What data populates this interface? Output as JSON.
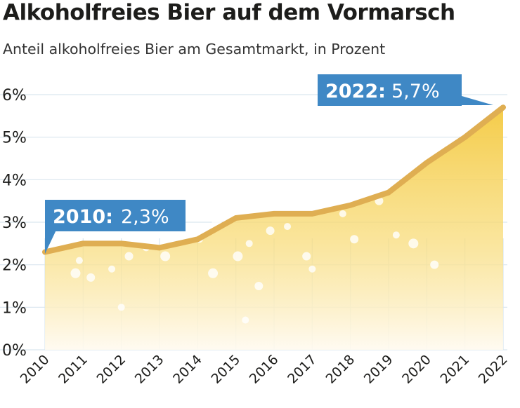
{
  "chart_data": {
    "type": "area",
    "title": "Alkoholfreies Bier auf dem Vormarsch",
    "subtitle": "Anteil alkoholfreies Bier am Gesamtmarkt, in Prozent",
    "x": [
      "2010",
      "2011",
      "2012",
      "2013",
      "2014",
      "2015",
      "2016",
      "2017",
      "2018",
      "2019",
      "2020",
      "2021",
      "2022"
    ],
    "values": [
      2.3,
      2.5,
      2.5,
      2.4,
      2.6,
      3.1,
      3.2,
      3.2,
      3.4,
      3.7,
      4.4,
      5.0,
      5.7
    ],
    "ylim": [
      0,
      6
    ],
    "yticks": [
      0,
      1,
      2,
      3,
      4,
      5,
      6
    ],
    "ytick_labels": [
      "0%",
      "1%",
      "2%",
      "3%",
      "4%",
      "5%",
      "6%"
    ],
    "grid": true,
    "annotations": [
      {
        "year": "2010:",
        "value": "2,3%"
      },
      {
        "year": "2022:",
        "value": "5,7%"
      }
    ]
  },
  "colors": {
    "line": "#dfae52",
    "fill_top": "#f4c93f",
    "fill_bottom": "#fffaf0",
    "callout": "#3f88c5",
    "grid": "#d9e6ef"
  }
}
